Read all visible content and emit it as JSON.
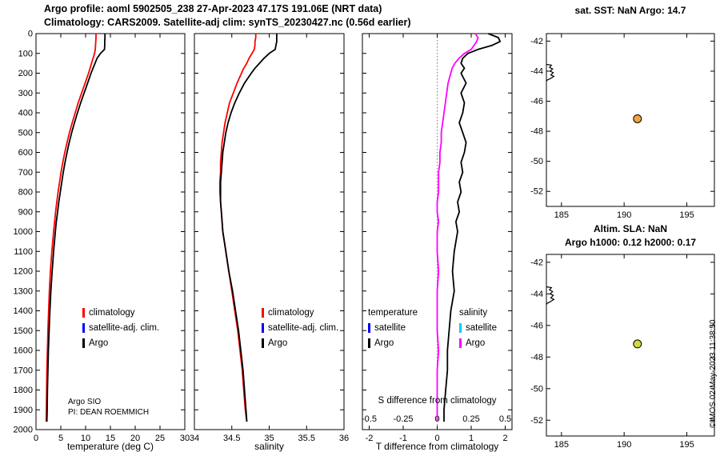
{
  "header": {
    "line1": "Argo profile: aoml 5902505_238 27-Apr-2023 47.17S 191.06E (NRT data)",
    "line2": "Climatology: CARS2009. Satellite-adj clim: synTS_20230427.nc (0.56d earlier)"
  },
  "colors": {
    "climatology": "#ff0000",
    "satellite_adj": "#0000ff",
    "argo": "#000000",
    "sal_satellite": "#00ccff",
    "sal_argo": "#ff00ff",
    "sst_marker_fill": "#f2a33c",
    "sla_marker_fill": "#cdd93f",
    "zero_line": "#777777"
  },
  "legends": {
    "panel1": {
      "items": [
        {
          "label": "climatology"
        },
        {
          "label": "satellite-adj. clim."
        },
        {
          "label": "Argo"
        }
      ]
    },
    "panel2": {
      "items": [
        {
          "label": "climatology"
        },
        {
          "label": "satellite-adj. clim."
        },
        {
          "label": "Argo"
        }
      ]
    },
    "panel3": {
      "temperature_title": "temperature",
      "salinity_title": "salinity",
      "temp_items": [
        {
          "label": "satellite"
        },
        {
          "label": "Argo"
        }
      ],
      "sal_items": [
        {
          "label": "satellite"
        },
        {
          "label": "Argo"
        }
      ]
    }
  },
  "annotations": {
    "argo_sio": "Argo SIO",
    "pi": "PI: DEAN ROEMMICH",
    "copyright": "©IMOS 02-May-2023 11:38:50"
  },
  "maps": {
    "sst": {
      "title": "sat. SST: NaN Argo: 14.7",
      "marker": {
        "lon": 191.06,
        "lat": -47.17,
        "fill": "#f2a33c"
      }
    },
    "sla": {
      "title1": "Altim. SLA: NaN",
      "title2": "Argo h1000: 0.12 h2000: 0.17",
      "marker": {
        "lon": 191.06,
        "lat": -47.17,
        "fill": "#cdd93f"
      }
    },
    "lon_ticks": [
      185,
      190,
      195
    ],
    "lat_ticks": [
      -42,
      -44,
      -46,
      -48,
      -50,
      -52
    ],
    "lon_range": [
      183.8,
      197.2
    ],
    "lat_range": [
      -41.5,
      -53.0
    ],
    "coastline": [
      [
        183.8,
        -43.55
      ],
      [
        184.2,
        -43.6
      ],
      [
        184.05,
        -43.75
      ],
      [
        184.3,
        -43.85
      ],
      [
        184.1,
        -44.0
      ],
      [
        184.35,
        -44.1
      ],
      [
        184.15,
        -44.25
      ],
      [
        184.4,
        -44.35
      ],
      [
        184.1,
        -44.5
      ],
      [
        183.85,
        -44.6
      ],
      [
        183.8,
        -44.68
      ]
    ]
  },
  "chart_data": [
    {
      "type": "line",
      "name": "temperature-profile",
      "xlabel": "temperature (deg C)",
      "xlim": [
        0,
        30
      ],
      "ylim": [
        0,
        2000
      ],
      "x_ticks": [
        0,
        5,
        10,
        15,
        20,
        25,
        30
      ],
      "y_ticks": [
        0,
        100,
        200,
        300,
        400,
        500,
        600,
        700,
        800,
        900,
        1000,
        1100,
        1200,
        1300,
        1400,
        1500,
        1600,
        1700,
        1800,
        1900,
        2000
      ],
      "y_tick_labels": true,
      "depth": [
        0,
        20,
        40,
        60,
        80,
        100,
        125,
        150,
        175,
        200,
        250,
        300,
        350,
        400,
        450,
        500,
        550,
        600,
        650,
        700,
        750,
        800,
        850,
        900,
        950,
        1000,
        1100,
        1200,
        1300,
        1400,
        1500,
        1600,
        1700,
        1800,
        1900,
        1960
      ],
      "series": [
        {
          "name": "climatology",
          "color": "#ff0000",
          "values": [
            12.1,
            12.1,
            12.05,
            12.0,
            11.95,
            11.8,
            11.5,
            11.2,
            10.9,
            10.6,
            9.9,
            9.2,
            8.5,
            7.9,
            7.3,
            6.75,
            6.25,
            5.8,
            5.4,
            5.05,
            4.75,
            4.45,
            4.2,
            3.95,
            3.75,
            3.55,
            3.2,
            2.9,
            2.7,
            2.55,
            2.4,
            2.3,
            2.2,
            2.15,
            2.1,
            2.05
          ]
        },
        {
          "name": "argo",
          "color": "#000000",
          "values": [
            13.9,
            13.9,
            13.85,
            13.85,
            13.8,
            13.0,
            12.3,
            11.9,
            11.5,
            11.1,
            10.4,
            9.7,
            9.0,
            8.35,
            7.75,
            7.2,
            6.7,
            6.25,
            5.85,
            5.5,
            5.2,
            4.9,
            4.6,
            4.35,
            4.1,
            3.9,
            3.55,
            3.25,
            3.0,
            2.8,
            2.65,
            2.5,
            2.4,
            2.3,
            2.25,
            2.2
          ]
        }
      ]
    },
    {
      "type": "line",
      "name": "salinity-profile",
      "xlabel": "salinity",
      "xlim": [
        34,
        36
      ],
      "ylim": [
        0,
        2000
      ],
      "x_ticks": [
        34,
        34.5,
        35,
        35.5,
        36
      ],
      "y_ticks": [
        0,
        100,
        200,
        300,
        400,
        500,
        600,
        700,
        800,
        900,
        1000,
        1100,
        1200,
        1300,
        1400,
        1500,
        1600,
        1700,
        1800,
        1900,
        2000
      ],
      "y_tick_labels": false,
      "depth": [
        0,
        20,
        40,
        60,
        80,
        100,
        125,
        150,
        175,
        200,
        250,
        300,
        350,
        400,
        450,
        500,
        550,
        600,
        650,
        700,
        750,
        800,
        850,
        900,
        950,
        1000,
        1100,
        1200,
        1300,
        1400,
        1500,
        1600,
        1700,
        1800,
        1900,
        1960
      ],
      "series": [
        {
          "name": "climatology",
          "color": "#ff0000",
          "values": [
            34.82,
            34.82,
            34.81,
            34.81,
            34.8,
            34.77,
            34.73,
            34.7,
            34.66,
            34.63,
            34.57,
            34.52,
            34.47,
            34.44,
            34.41,
            34.39,
            34.37,
            34.36,
            34.35,
            34.35,
            34.34,
            34.34,
            34.35,
            34.36,
            34.37,
            34.38,
            34.42,
            34.46,
            34.5,
            34.54,
            34.58,
            34.61,
            34.64,
            34.66,
            34.68,
            34.7
          ]
        },
        {
          "name": "argo",
          "color": "#000000",
          "values": [
            35.1,
            35.1,
            35.1,
            35.09,
            35.08,
            35.0,
            34.93,
            34.87,
            34.81,
            34.76,
            34.67,
            34.6,
            34.54,
            34.49,
            34.45,
            34.42,
            34.4,
            34.38,
            34.37,
            34.36,
            34.35,
            34.35,
            34.35,
            34.36,
            34.37,
            34.38,
            34.42,
            34.46,
            34.51,
            34.55,
            34.59,
            34.62,
            34.65,
            34.67,
            34.69,
            34.7
          ]
        }
      ]
    },
    {
      "type": "line",
      "name": "difference-profile",
      "xlabel": "T difference from climatology",
      "x2label": "S difference from climatology",
      "xlim": [
        -2.2,
        2.2
      ],
      "x2lim": [
        -0.55,
        0.55
      ],
      "ylim": [
        0,
        2000
      ],
      "x_ticks": [
        -2,
        -1,
        0,
        1,
        2
      ],
      "x2_ticks": [
        -0.5,
        -0.25,
        0,
        0.25,
        0.5
      ],
      "y_ticks": [
        0,
        100,
        200,
        300,
        400,
        500,
        600,
        700,
        800,
        900,
        1000,
        1100,
        1200,
        1300,
        1400,
        1500,
        1600,
        1700,
        1800,
        1900,
        2000
      ],
      "y_tick_labels": false,
      "zero_line": true,
      "depth": [
        0,
        20,
        40,
        60,
        80,
        100,
        125,
        150,
        175,
        200,
        250,
        300,
        350,
        400,
        450,
        500,
        550,
        600,
        650,
        700,
        750,
        800,
        850,
        900,
        950,
        1000,
        1100,
        1200,
        1300,
        1400,
        1500,
        1600,
        1700,
        1800,
        1900,
        1960
      ],
      "series": [
        {
          "name": "t-diff-argo",
          "color": "#000000",
          "axis": "x",
          "values": [
            1.5,
            1.8,
            1.85,
            1.6,
            1.2,
            0.9,
            0.75,
            0.7,
            0.8,
            0.7,
            0.85,
            0.7,
            0.8,
            0.75,
            0.65,
            0.75,
            0.85,
            0.8,
            0.7,
            0.75,
            0.65,
            0.7,
            0.6,
            0.65,
            0.55,
            0.6,
            0.5,
            0.45,
            0.5,
            0.4,
            0.35,
            0.3,
            0.3,
            0.25,
            0.2,
            0.2
          ]
        },
        {
          "name": "s-diff-argo",
          "color": "#ff00ff",
          "axis": "x2",
          "values": [
            0.28,
            0.3,
            0.29,
            0.27,
            0.25,
            0.2,
            0.16,
            0.13,
            0.11,
            0.1,
            0.08,
            0.07,
            0.06,
            0.05,
            0.04,
            0.03,
            0.03,
            0.02,
            0.02,
            0.01,
            0.01,
            0.01,
            0.0,
            0.0,
            0.01,
            0.0,
            0.0,
            0.01,
            0.0,
            0.0,
            0.0,
            0.01,
            0.0,
            0.0,
            0.0,
            0.0
          ]
        }
      ]
    }
  ]
}
